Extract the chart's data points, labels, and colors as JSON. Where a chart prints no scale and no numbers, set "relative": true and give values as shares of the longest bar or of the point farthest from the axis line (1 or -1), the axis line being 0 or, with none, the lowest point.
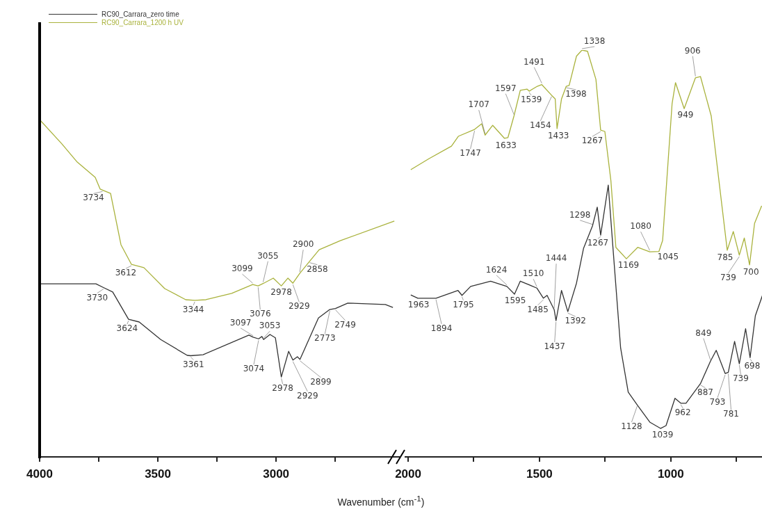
{
  "chart_data": [
    {
      "type": "line",
      "relative": true,
      "xlabel": "Wavenumber (cm$^{-1}$)",
      "legend": "top left",
      "marker": "none",
      "line_style": "solid",
      "xlim": [
        4000,
        2480
      ],
      "xticks": [
        4000,
        {
          "value": 3750,
          "label": null
        },
        3500,
        {
          "value": 3250,
          "label": null
        },
        3000,
        {
          "value": 2750,
          "label": null
        }
      ],
      "series": [
        {
          "name": "RC90_Carrara_zero time",
          "color": "#333333",
          "x": [
            3997,
            3762,
            3730,
            3691,
            3624,
            3579,
            3488,
            3376,
            3361,
            3309,
            3115,
            3097,
            3074,
            3060,
            3053,
            3026,
            3003,
            2978,
            2947,
            2929,
            2910,
            2899,
            2821,
            2773,
            2749,
            2697,
            2538,
            2506
          ],
          "values": [
            0.513,
            0.513,
            0.502,
            0.489,
            0.408,
            0.4,
            0.348,
            0.301,
            0.3,
            0.303,
            0.361,
            0.355,
            0.35,
            0.357,
            0.348,
            0.363,
            0.353,
            0.237,
            0.313,
            0.287,
            0.297,
            0.289,
            0.412,
            0.437,
            0.44,
            0.456,
            0.452,
            0.443
          ]
        },
        {
          "name": "RC90_Carrara_1200 h UV",
          "color": "#a9b23c",
          "x": [
            4000,
            3906,
            3841,
            3765,
            3744,
            3734,
            3700,
            3656,
            3612,
            3559,
            3471,
            3382,
            3344,
            3297,
            3188,
            3099,
            3076,
            3055,
            3012,
            2978,
            2950,
            2929,
            2900,
            2858,
            2818,
            2729,
            2500
          ],
          "values": [
            1.0,
            0.928,
            0.874,
            0.829,
            0.794,
            0.791,
            0.781,
            0.629,
            0.571,
            0.561,
            0.499,
            0.466,
            0.464,
            0.466,
            0.485,
            0.511,
            0.507,
            0.514,
            0.53,
            0.507,
            0.53,
            0.515,
            0.544,
            0.58,
            0.614,
            0.641,
            0.699
          ]
        }
      ],
      "annotations": [
        {
          "text": "3734",
          "x": 3734,
          "y": 0.791
        },
        {
          "text": "3612",
          "x": 3612,
          "y": 0.571
        },
        {
          "text": "3344",
          "x": 3344,
          "y": 0.464
        },
        {
          "text": "3099",
          "x": 3099,
          "y": 0.511
        },
        {
          "text": "3055",
          "x": 3055,
          "y": 0.514
        },
        {
          "text": "2900",
          "x": 2900,
          "y": 0.544
        },
        {
          "text": "2858",
          "x": 2858,
          "y": 0.58
        },
        {
          "text": "2978",
          "x": 2978,
          "y": 0.507
        },
        {
          "text": "2929",
          "x": 2929,
          "y": 0.515
        },
        {
          "text": "3076",
          "x": 3076,
          "y": 0.507
        },
        {
          "text": "3730",
          "x": 3730,
          "y": 0.502
        },
        {
          "text": "3624",
          "x": 3624,
          "y": 0.408
        },
        {
          "text": "3361",
          "x": 3361,
          "y": 0.3
        },
        {
          "text": "3097",
          "x": 3097,
          "y": 0.355
        },
        {
          "text": "3053",
          "x": 3053,
          "y": 0.348
        },
        {
          "text": "3074",
          "x": 3074,
          "y": 0.35
        },
        {
          "text": "2978",
          "x": 2978,
          "y": 0.237
        },
        {
          "text": "2929",
          "x": 2929,
          "y": 0.287
        },
        {
          "text": "2899",
          "x": 2899,
          "y": 0.289
        },
        {
          "text": "2773",
          "x": 2773,
          "y": 0.437
        },
        {
          "text": "2749",
          "x": 2749,
          "y": 0.44
        }
      ]
    },
    {
      "type": "line",
      "relative": true,
      "marker": "none",
      "line_style": "solid",
      "xlim": [
        2010,
        650
      ],
      "xticks": [
        2000,
        {
          "value": 1750,
          "label": null
        },
        1500,
        {
          "value": 1250,
          "label": null
        },
        1000,
        {
          "value": 750,
          "label": null
        }
      ],
      "series": [
        {
          "color": "#333333",
          "x": [
            1990,
            1963,
            1894,
            1810,
            1795,
            1762,
            1686,
            1624,
            1595,
            1573,
            1510,
            1485,
            1471,
            1444,
            1437,
            1416,
            1392,
            1359,
            1332,
            1298,
            1280,
            1267,
            1238,
            1220,
            1191,
            1162,
            1128,
            1079,
            1039,
            1018,
            984,
            962,
            942,
            887,
            849,
            827,
            793,
            781,
            757,
            739,
            715,
            698,
            678,
            651
          ],
          "values": [
            0.398,
            0.39,
            0.39,
            0.409,
            0.397,
            0.419,
            0.432,
            0.419,
            0.4,
            0.432,
            0.415,
            0.39,
            0.397,
            0.362,
            0.335,
            0.409,
            0.357,
            0.427,
            0.513,
            0.568,
            0.614,
            0.545,
            0.668,
            0.513,
            0.268,
            0.159,
            0.128,
            0.085,
            0.07,
            0.077,
            0.144,
            0.132,
            0.132,
            0.18,
            0.235,
            0.262,
            0.205,
            0.208,
            0.284,
            0.229,
            0.315,
            0.244,
            0.347,
            0.397
          ]
        },
        {
          "color": "#a9b23c",
          "x": [
            1990,
            1921,
            1835,
            1809,
            1747,
            1720,
            1707,
            1678,
            1633,
            1620,
            1597,
            1573,
            1547,
            1539,
            1508,
            1491,
            1454,
            1440,
            1433,
            1416,
            1398,
            1387,
            1359,
            1338,
            1317,
            1285,
            1267,
            1251,
            1228,
            1209,
            1169,
            1126,
            1080,
            1045,
            1031,
            995,
            982,
            949,
            906,
            887,
            846,
            785,
            762,
            739,
            720,
            700,
            681,
            654
          ],
          "values": [
            0.706,
            0.733,
            0.764,
            0.788,
            0.805,
            0.819,
            0.791,
            0.815,
            0.783,
            0.785,
            0.838,
            0.901,
            0.904,
            0.899,
            0.911,
            0.915,
            0.889,
            0.88,
            0.807,
            0.88,
            0.911,
            0.913,
            0.985,
            1.0,
            0.997,
            0.928,
            0.803,
            0.8,
            0.679,
            0.515,
            0.487,
            0.515,
            0.504,
            0.505,
            0.532,
            0.868,
            0.92,
            0.856,
            0.932,
            0.935,
            0.838,
            0.508,
            0.554,
            0.496,
            0.538,
            0.472,
            0.574,
            0.617
          ]
        }
      ],
      "annotations": [
        {
          "text": "1338",
          "x": 1338,
          "y": 1.0
        },
        {
          "text": "1491",
          "x": 1491,
          "y": 0.915
        },
        {
          "text": "1597",
          "x": 1597,
          "y": 0.838
        },
        {
          "text": "1539",
          "x": 1539,
          "y": 0.899
        },
        {
          "text": "1707",
          "x": 1707,
          "y": 0.791
        },
        {
          "text": "1454",
          "x": 1454,
          "y": 0.889
        },
        {
          "text": "1398",
          "x": 1398,
          "y": 0.911
        },
        {
          "text": "1433",
          "x": 1433,
          "y": 0.807
        },
        {
          "text": "1747",
          "x": 1747,
          "y": 0.805
        },
        {
          "text": "1633",
          "x": 1633,
          "y": 0.783
        },
        {
          "text": "1267",
          "x": 1267,
          "y": 0.803
        },
        {
          "text": "906",
          "x": 906,
          "y": 0.932
        },
        {
          "text": "949",
          "x": 949,
          "y": 0.856
        },
        {
          "text": "1080",
          "x": 1080,
          "y": 0.504
        },
        {
          "text": "1045",
          "x": 1045,
          "y": 0.505
        },
        {
          "text": "1169",
          "x": 1169,
          "y": 0.487
        },
        {
          "text": "785",
          "x": 785,
          "y": 0.508
        },
        {
          "text": "739",
          "x": 739,
          "y": 0.496
        },
        {
          "text": "700",
          "x": 700,
          "y": 0.472
        },
        {
          "text": "1298",
          "x": 1298,
          "y": 0.568
        },
        {
          "text": "1267",
          "x": 1267,
          "y": 0.545
        },
        {
          "text": "1444",
          "x": 1444,
          "y": 0.362
        },
        {
          "text": "1624",
          "x": 1624,
          "y": 0.419
        },
        {
          "text": "1510",
          "x": 1510,
          "y": 0.415
        },
        {
          "text": "1963",
          "x": 1963,
          "y": 0.39
        },
        {
          "text": "1795",
          "x": 1795,
          "y": 0.397
        },
        {
          "text": "1894",
          "x": 1894,
          "y": 0.39
        },
        {
          "text": "1595",
          "x": 1595,
          "y": 0.4
        },
        {
          "text": "1485",
          "x": 1485,
          "y": 0.39
        },
        {
          "text": "1392",
          "x": 1392,
          "y": 0.357
        },
        {
          "text": "1437",
          "x": 1437,
          "y": 0.335
        },
        {
          "text": "849",
          "x": 849,
          "y": 0.235
        },
        {
          "text": "698",
          "x": 698,
          "y": 0.244
        },
        {
          "text": "739",
          "x": 739,
          "y": 0.229
        },
        {
          "text": "887",
          "x": 887,
          "y": 0.18
        },
        {
          "text": "793",
          "x": 793,
          "y": 0.205
        },
        {
          "text": "781",
          "x": 781,
          "y": 0.208
        },
        {
          "text": "962",
          "x": 962,
          "y": 0.132
        },
        {
          "text": "1128",
          "x": 1128,
          "y": 0.128
        },
        {
          "text": "1039",
          "x": 1039,
          "y": 0.07
        }
      ]
    }
  ]
}
